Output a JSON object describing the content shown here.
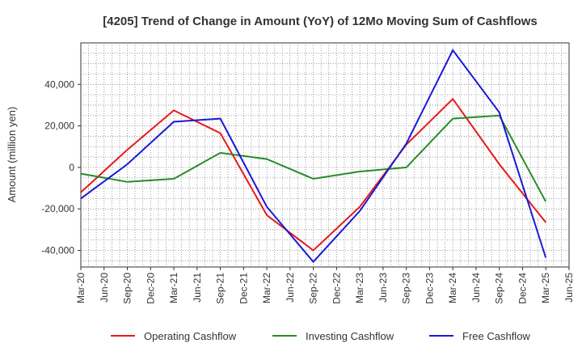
{
  "chart_data": {
    "type": "line",
    "title": "[4205]  Trend of Change in Amount (YoY) of 12Mo Moving Sum of Cashflows",
    "xlabel": "",
    "ylabel": "Amount (million yen)",
    "ylim": [
      -48000,
      60000
    ],
    "yticks": [
      -40000,
      -20000,
      0,
      20000,
      40000
    ],
    "ytick_labels": [
      "-40,000",
      "-20,000",
      "0",
      "20,000",
      "40,000"
    ],
    "grid": true,
    "legend_position": "bottom",
    "categories": [
      "Mar-20",
      "Jun-20",
      "Sep-20",
      "Dec-20",
      "Mar-21",
      "Jun-21",
      "Sep-21",
      "Dec-21",
      "Mar-22",
      "Jun-22",
      "Sep-22",
      "Dec-22",
      "Mar-23",
      "Jun-23",
      "Sep-23",
      "Dec-23",
      "Mar-24",
      "Jun-24",
      "Sep-24",
      "Dec-24",
      "Mar-25",
      "Jun-25"
    ],
    "series": [
      {
        "name": "Operating Cashflow",
        "color": "#e8191a",
        "points": [
          [
            0,
            -12000
          ],
          [
            2,
            8500
          ],
          [
            4,
            27500
          ],
          [
            6,
            16500
          ],
          [
            8,
            -23000
          ],
          [
            10,
            -40000
          ],
          [
            12,
            -19000
          ],
          [
            14,
            11000
          ],
          [
            16,
            33000
          ],
          [
            18,
            1500
          ],
          [
            20,
            -26500
          ]
        ]
      },
      {
        "name": "Investing Cashflow",
        "color": "#2a8a2a",
        "points": [
          [
            0,
            -3000
          ],
          [
            2,
            -7000
          ],
          [
            4,
            -5500
          ],
          [
            6,
            7000
          ],
          [
            8,
            4000
          ],
          [
            10,
            -5500
          ],
          [
            12,
            -2000
          ],
          [
            14,
            0
          ],
          [
            16,
            23500
          ],
          [
            18,
            25000
          ],
          [
            20,
            -16500
          ]
        ]
      },
      {
        "name": "Free Cashflow",
        "color": "#1a1ad6",
        "points": [
          [
            0,
            -15000
          ],
          [
            2,
            1500
          ],
          [
            4,
            22000
          ],
          [
            6,
            23500
          ],
          [
            8,
            -19000
          ],
          [
            10,
            -45500
          ],
          [
            12,
            -21000
          ],
          [
            14,
            11500
          ],
          [
            16,
            56500
          ],
          [
            18,
            26500
          ],
          [
            20,
            -43500
          ]
        ]
      }
    ]
  }
}
